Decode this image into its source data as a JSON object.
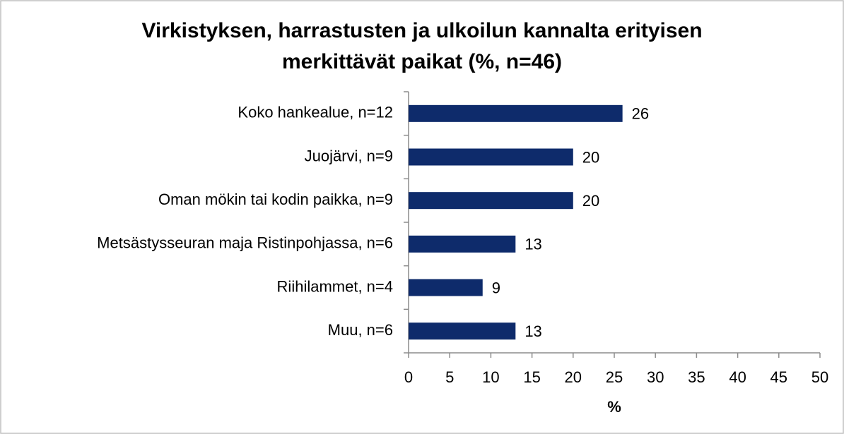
{
  "chart_data": {
    "type": "bar",
    "orientation": "horizontal",
    "title": "Virkistyksen, harrastusten ja ulkoilun kannalta erityisen\nmerkittävät paikat (%, n=46)",
    "categories": [
      "Koko hankealue, n=12",
      "Juojärvi, n=9",
      "Oman mökin tai kodin paikka, n=9",
      "Metsästysseuran maja Ristinpohjassa, n=6",
      "Riihilammet, n=4",
      "Muu, n=6"
    ],
    "values": [
      26,
      20,
      20,
      13,
      9,
      13
    ],
    "color": "#0e2b6b",
    "xlabel": "%",
    "xlim": [
      0,
      50
    ],
    "xticks": [
      0,
      5,
      10,
      15,
      20,
      25,
      30,
      35,
      40,
      45,
      50
    ],
    "grid": false
  }
}
